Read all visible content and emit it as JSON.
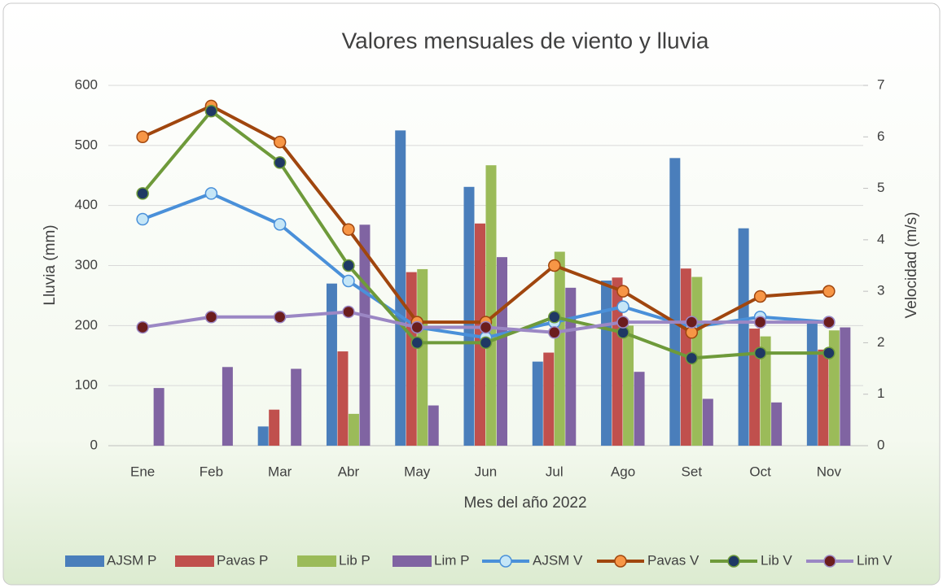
{
  "chart_data": {
    "type": "bar+line",
    "title": "Valores mensuales de viento y lluvia",
    "x_label": "Mes del año 2022",
    "y_label": "Lluvia (mm)",
    "y2_label": "Velocidad (m/s)",
    "categories": [
      "Ene",
      "Feb",
      "Mar",
      "Abr",
      "May",
      "Jun",
      "Jul",
      "Ago",
      "Set",
      "Oct",
      "Nov"
    ],
    "ylim": [
      0,
      600
    ],
    "yticks": [
      0,
      100,
      200,
      300,
      400,
      500,
      600
    ],
    "y2lim": [
      0,
      7
    ],
    "y2ticks": [
      0,
      1,
      2,
      3,
      4,
      5,
      6,
      7
    ],
    "grid": true,
    "legend": "bottom",
    "series": [
      {
        "name": "AJSM P",
        "type": "bar",
        "color": "#4a7ebb",
        "values": [
          0,
          0,
          32,
          270,
          525,
          431,
          140,
          275,
          479,
          362,
          205
        ]
      },
      {
        "name": "Pavas P",
        "type": "bar",
        "color": "#c0504d",
        "values": [
          0,
          0,
          60,
          157,
          289,
          370,
          155,
          280,
          295,
          195,
          160
        ]
      },
      {
        "name": "Lib P",
        "type": "bar",
        "color": "#9bbb59",
        "values": [
          0,
          0,
          0,
          53,
          294,
          467,
          323,
          200,
          281,
          182,
          192
        ]
      },
      {
        "name": "Lim P",
        "type": "bar",
        "color": "#8064a2",
        "values": [
          96,
          131,
          128,
          368,
          67,
          314,
          263,
          123,
          78,
          72,
          197
        ]
      },
      {
        "name": "AJSM V",
        "type": "line",
        "axis": "y2",
        "color": "#4a90d9",
        "marker_color": "#c5e6f7",
        "values": [
          4.4,
          4.9,
          4.3,
          3.2,
          2.3,
          2.1,
          2.4,
          2.7,
          2.3,
          2.5,
          2.4
        ]
      },
      {
        "name": "Pavas V",
        "type": "line",
        "axis": "y2",
        "color": "#a0460e",
        "marker_color": "#f79646",
        "values": [
          6.0,
          6.6,
          5.9,
          4.2,
          2.4,
          2.4,
          3.5,
          3.0,
          2.2,
          2.9,
          3.0
        ]
      },
      {
        "name": "Lib V",
        "type": "line",
        "axis": "y2",
        "color": "#6e9a3a",
        "marker_color": "#1f3864",
        "values": [
          4.9,
          6.5,
          5.5,
          3.5,
          2.0,
          2.0,
          2.5,
          2.2,
          1.7,
          1.8,
          1.8
        ]
      },
      {
        "name": "Lim V",
        "type": "line",
        "axis": "y2",
        "color": "#9b87c4",
        "marker_color": "#6b1d1d",
        "values": [
          2.3,
          2.5,
          2.5,
          2.6,
          2.3,
          2.3,
          2.2,
          2.4,
          2.4,
          2.4,
          2.4
        ]
      }
    ]
  }
}
